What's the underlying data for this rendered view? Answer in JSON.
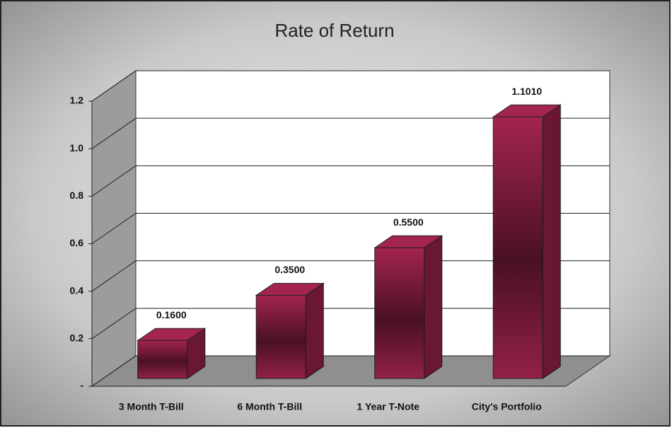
{
  "chart_data": {
    "type": "bar3d",
    "title": "Rate of Return",
    "categories": [
      "3 Month T-Bill",
      "6 Month T-Bill",
      "1 Year T-Note",
      "City's Portfolio"
    ],
    "values": [
      0.16,
      0.35,
      0.55,
      1.101
    ],
    "value_labels": [
      "0.1600",
      "0.3500",
      "0.5500",
      "1.1010"
    ],
    "color": "#a3244f",
    "ylim": [
      0,
      1.2
    ],
    "yticks": [
      {
        "value": 0,
        "label": "-"
      },
      0.2,
      0.4,
      0.6,
      0.8,
      {
        "value": 1,
        "label": "1.0"
      },
      1.2
    ],
    "grid": true
  }
}
